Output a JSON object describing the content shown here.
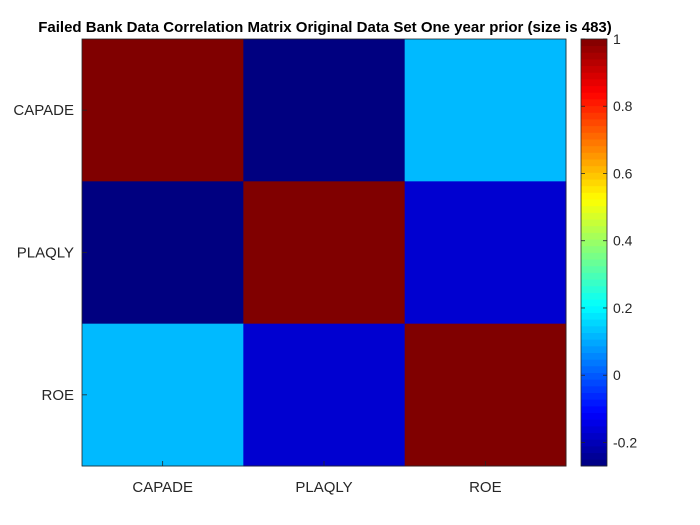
{
  "chart_data": {
    "type": "heatmap",
    "title": "Failed Bank Data Correlation Matrix Original Data Set One year prior (size is 483)",
    "xlabel": "",
    "ylabel": "",
    "x_categories": [
      "CAPADE",
      "PLAQLY",
      "ROE"
    ],
    "y_categories": [
      "CAPADE",
      "PLAQLY",
      "ROE"
    ],
    "values": [
      [
        1.0,
        -0.27,
        0.12
      ],
      [
        -0.27,
        1.0,
        -0.17
      ],
      [
        0.12,
        -0.17,
        1.0
      ]
    ],
    "colormap": "jet",
    "clim": [
      -0.27,
      1.0
    ],
    "colorbar": {
      "ticks": [
        -0.2,
        0,
        0.2,
        0.4,
        0.6,
        0.8,
        1
      ],
      "tick_labels": [
        "-0.2",
        "0",
        "0.2",
        "0.4",
        "0.6",
        "0.8",
        "1"
      ],
      "placement": "right"
    },
    "grid": false
  }
}
